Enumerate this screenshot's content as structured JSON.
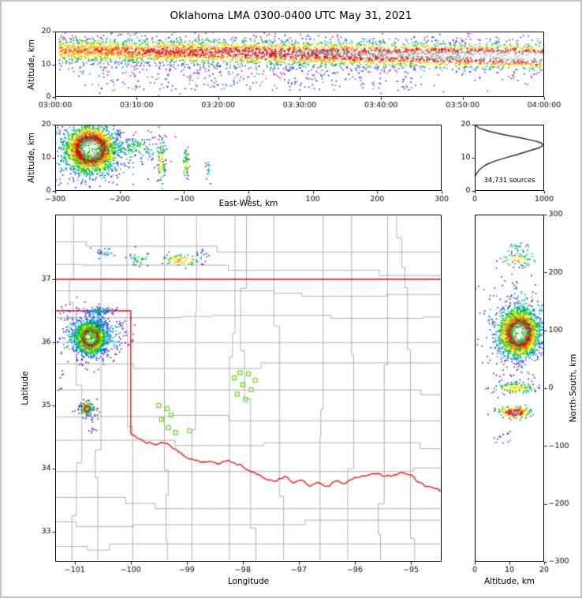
{
  "title": "Oklahoma LMA 0300-0400 UTC May 31, 2021",
  "annotation": {
    "sources_label": "34,731 sources"
  },
  "labels": {
    "altitude_top": "Altitude, km",
    "altitude_ew": "Altitude, km",
    "east_west": "East-West, km",
    "latitude": "Latitude",
    "longitude": "Longitude",
    "north_south": "North-South, km",
    "altitude_ns": "Altitude, km"
  },
  "colors": {
    "background": "#ffffff",
    "frame": "#c4c4c4",
    "axis": "#000000",
    "county": "#b0b0b0",
    "state_border": "#ff0000",
    "station": "#55dd00",
    "histogram_line": "#000000",
    "density_scale": [
      "#c800c8",
      "#2832e6",
      "#00a8e8",
      "#00c800",
      "#ffe600",
      "#ff9600",
      "#e60000",
      "#808080",
      "#c2c2c2",
      "#ffffff"
    ]
  },
  "chart_data": {
    "type": "scatter",
    "description": "XLMA-style lightning VHF source density, multi-panel: time-height, EW cross-section, altitude histogram, plan-view map, NS cross-section",
    "panels": {
      "time_height": {
        "x_tick_labels": [
          "03:00:00",
          "03:10:00",
          "03:20:00",
          "03:30:00",
          "03:40:00",
          "03:50:00",
          "04:00:00"
        ],
        "x_tick_values": [
          0,
          600,
          1200,
          1800,
          2400,
          3000,
          3600
        ],
        "x_range": [
          0,
          3600
        ],
        "y_range": [
          0,
          20
        ],
        "y_ticks": [
          0,
          10,
          20
        ],
        "band": {
          "n": 5200,
          "alt_center_start": 14.3,
          "alt_center_end": 12.3,
          "alt_sd": 2.1,
          "outlier_frac": 0.1,
          "outlier_sd": 4.6,
          "t_min": 30,
          "t_max": 3600,
          "base_intensity": 0.55,
          "end_intensity": 1.0,
          "seed": 11
        },
        "low_scatter": {
          "n": 260,
          "alt_min": 2,
          "alt_max": 9.5,
          "t_min": 250,
          "t_max": 2700,
          "seed": 12
        }
      },
      "east_west": {
        "x_range": [
          -300,
          300
        ],
        "x_ticks": [
          -300,
          -200,
          -100,
          0,
          100,
          200,
          300
        ],
        "y_range": [
          0,
          20
        ],
        "y_ticks": [
          0,
          10,
          20
        ],
        "clusters": [
          {
            "cx": -245,
            "cy": 12.6,
            "sx": 18,
            "sy": 3.2,
            "n": 2600,
            "hot": 1.0,
            "seed": 21
          },
          {
            "cx": -245,
            "cy": 11.5,
            "sx": 42,
            "sy": 5.0,
            "n": 500,
            "hot": 0.3,
            "seed": 22
          },
          {
            "cx": -175,
            "cy": 13.0,
            "sx": 22,
            "sy": 1.8,
            "n": 130,
            "hot": 0.28,
            "seed": 23
          },
          {
            "cx": -135,
            "cy": 9.0,
            "sx": 3.0,
            "sy": 3.6,
            "n": 90,
            "hot": 0.45,
            "seed": 24
          },
          {
            "cx": -97,
            "cy": 8.0,
            "sx": 2.2,
            "sy": 2.6,
            "n": 55,
            "hot": 0.4,
            "seed": 25
          },
          {
            "cx": -62,
            "cy": 7.0,
            "sx": 2.0,
            "sy": 1.5,
            "n": 16,
            "hot": 0.25,
            "seed": 26
          }
        ]
      },
      "histogram": {
        "x_range": [
          0,
          1000
        ],
        "x_ticks": [
          0,
          1000
        ],
        "y_range": [
          0,
          20
        ],
        "y_ticks": [
          0,
          10,
          20
        ],
        "profile_alt": [
          4.5,
          5,
          6,
          7,
          8,
          9,
          10,
          11,
          12,
          13,
          13.5,
          14,
          14.5,
          15,
          16,
          17,
          18,
          19,
          20
        ],
        "profile_count": [
          0,
          20,
          50,
          100,
          170,
          290,
          445,
          610,
          770,
          925,
          970,
          980,
          955,
          880,
          670,
          415,
          200,
          60,
          5
        ],
        "total_sources": 34731
      },
      "map": {
        "lon_range": [
          -101.35,
          -94.45
        ],
        "lat_range": [
          32.525,
          38.025
        ],
        "x_ticks": [
          -101,
          -100,
          -99,
          -98,
          -97,
          -96,
          -95
        ],
        "y_ticks": [
          33,
          34,
          35,
          36,
          37
        ],
        "clusters": [
          {
            "cx": -100.72,
            "cy": 36.07,
            "sx": 0.11,
            "sy": 0.11,
            "n": 2800,
            "hot": 1.0,
            "seed": 31
          },
          {
            "cx": -100.7,
            "cy": 36.1,
            "sx": 0.28,
            "sy": 0.2,
            "n": 550,
            "hot": 0.3,
            "seed": 32
          },
          {
            "cx": -100.55,
            "cy": 36.5,
            "sx": 0.14,
            "sy": 0.03,
            "n": 90,
            "hot": 0.22,
            "seed": 33
          },
          {
            "cx": -100.6,
            "cy": 36.33,
            "sx": 0.1,
            "sy": 0.07,
            "n": 45,
            "hot": 0.16,
            "seed": 34
          },
          {
            "cx": -101.15,
            "cy": 36.5,
            "sx": 0.08,
            "sy": 0.05,
            "n": 12,
            "hot": 0.13,
            "seed": 43
          },
          {
            "cx": -100.78,
            "cy": 34.95,
            "sx": 0.05,
            "sy": 0.042,
            "n": 280,
            "hot": 0.92,
            "seed": 35
          },
          {
            "cx": -100.76,
            "cy": 34.95,
            "sx": 0.1,
            "sy": 0.08,
            "n": 50,
            "hot": 0.2,
            "seed": 36
          },
          {
            "cx": -100.7,
            "cy": 34.62,
            "sx": 0.05,
            "sy": 0.03,
            "n": 7,
            "hot": 0.14,
            "seed": 37
          },
          {
            "cx": -100.45,
            "cy": 37.42,
            "sx": 0.08,
            "sy": 0.05,
            "n": 25,
            "hot": 0.17,
            "seed": 38
          },
          {
            "cx": -99.85,
            "cy": 37.33,
            "sx": 0.1,
            "sy": 0.055,
            "n": 32,
            "hot": 0.3,
            "seed": 39
          },
          {
            "cx": -99.1,
            "cy": 37.3,
            "sx": 0.17,
            "sy": 0.05,
            "n": 80,
            "hot": 0.5,
            "seed": 40
          },
          {
            "cx": -98.72,
            "cy": 37.42,
            "sx": 0.05,
            "sy": 0.03,
            "n": 10,
            "hot": 0.2,
            "seed": 41
          },
          {
            "cx": -101.22,
            "cy": 35.4,
            "sx": 0.04,
            "sy": 0.12,
            "n": 8,
            "hot": 0.1,
            "seed": 42
          }
        ],
        "stations": [
          [
            -98.05,
            35.52
          ],
          [
            -97.9,
            35.5
          ],
          [
            -98.15,
            35.44
          ],
          [
            -97.78,
            35.4
          ],
          [
            -98.0,
            35.33
          ],
          [
            -97.85,
            35.25
          ],
          [
            -98.1,
            35.18
          ],
          [
            -97.95,
            35.1
          ],
          [
            -99.5,
            35.0
          ],
          [
            -99.35,
            34.95
          ],
          [
            -99.28,
            34.85
          ],
          [
            -99.45,
            34.78
          ],
          [
            -99.33,
            34.65
          ],
          [
            -99.2,
            34.57
          ],
          [
            -98.95,
            34.6
          ]
        ],
        "state_border": {
          "north_lat": 37.0,
          "panhandle_lat": 36.5,
          "west_lon": -100.0,
          "west_lat_top": 36.5,
          "west_lat_bottom": 34.56,
          "red_river": [
            [
              -100.0,
              34.56
            ],
            [
              -99.9,
              34.49
            ],
            [
              -99.78,
              34.44
            ],
            [
              -99.6,
              34.39
            ],
            [
              -99.45,
              34.42
            ],
            [
              -99.32,
              34.38
            ],
            [
              -99.2,
              34.31
            ],
            [
              -99.05,
              34.2
            ],
            [
              -98.9,
              34.15
            ],
            [
              -98.75,
              34.1
            ],
            [
              -98.6,
              34.12
            ],
            [
              -98.45,
              34.07
            ],
            [
              -98.3,
              34.12
            ],
            [
              -98.15,
              34.09
            ],
            [
              -98.0,
              34.03
            ],
            [
              -97.85,
              33.95
            ],
            [
              -97.7,
              33.9
            ],
            [
              -97.55,
              33.82
            ],
            [
              -97.4,
              33.8
            ],
            [
              -97.25,
              33.88
            ],
            [
              -97.1,
              33.77
            ],
            [
              -96.95,
              33.82
            ],
            [
              -96.8,
              33.72
            ],
            [
              -96.65,
              33.78
            ],
            [
              -96.5,
              33.72
            ],
            [
              -96.35,
              33.8
            ],
            [
              -96.2,
              33.76
            ],
            [
              -96.05,
              33.83
            ],
            [
              -95.9,
              33.87
            ],
            [
              -95.75,
              33.9
            ],
            [
              -95.6,
              33.92
            ],
            [
              -95.45,
              33.88
            ],
            [
              -95.3,
              33.9
            ],
            [
              -95.15,
              33.94
            ],
            [
              -95.0,
              33.9
            ],
            [
              -94.85,
              33.78
            ],
            [
              -94.7,
              33.72
            ],
            [
              -94.55,
              33.68
            ],
            [
              -94.45,
              33.66
            ]
          ]
        },
        "county_grid": {
          "seed": 77
        }
      },
      "north_south": {
        "x_range": [
          0,
          20
        ],
        "x_ticks": [
          0,
          10,
          20
        ],
        "y_range": [
          -300,
          300
        ],
        "y_ticks": [
          300,
          200,
          100,
          0,
          -100,
          -200,
          -300
        ],
        "clusters": [
          {
            "cx": 12.8,
            "cy": 95,
            "sx": 2.6,
            "sy": 18,
            "n": 2800,
            "hot": 1.0,
            "seed": 51
          },
          {
            "cx": 12.0,
            "cy": 100,
            "sx": 4.5,
            "sy": 40,
            "n": 450,
            "hot": 0.3,
            "seed": 52
          },
          {
            "cx": 12.0,
            "cy": 222,
            "sx": 2.6,
            "sy": 6,
            "n": 60,
            "hot": 0.45,
            "seed": 53
          },
          {
            "cx": 12.5,
            "cy": 242,
            "sx": 2.2,
            "sy": 4,
            "n": 25,
            "hot": 0.3,
            "seed": 54
          },
          {
            "cx": 11.5,
            "cy": 0,
            "sx": 3.2,
            "sy": 5,
            "n": 130,
            "hot": 0.45,
            "seed": 55
          },
          {
            "cx": 11.5,
            "cy": -42,
            "sx": 2.2,
            "sy": 5,
            "n": 180,
            "hot": 0.85,
            "seed": 56
          },
          {
            "cx": 9.0,
            "cy": -85,
            "sx": 2.0,
            "sy": 8,
            "n": 12,
            "hot": 0.15,
            "seed": 57
          }
        ]
      }
    }
  }
}
